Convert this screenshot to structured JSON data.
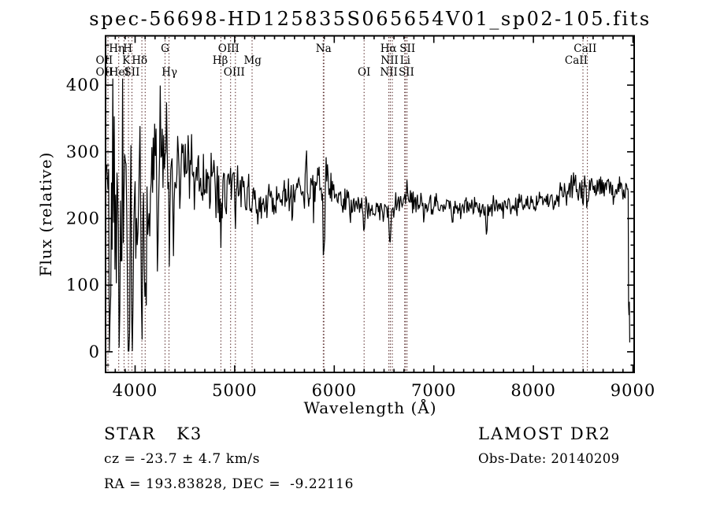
{
  "title": "spec-56698-HD125835S065654V01_sp02-105.fits",
  "annotations": {
    "class_label": "STAR   K3",
    "survey": "LAMOST DR2",
    "cz": "cz = -23.7 ± 4.7 km/s",
    "obs_date": "Obs-Date: 20140209",
    "radec": "RA = 193.83828, DEC =  -9.22116"
  },
  "chart_data": {
    "type": "line",
    "title": "spec-56698-HD125835S065654V01_sp02-105.fits",
    "xlabel": "Wavelength (Å)",
    "ylabel": "Flux (relative)",
    "xlim": [
      3703,
      9012
    ],
    "ylim": [
      -31,
      474
    ],
    "x_ticks": [
      4000,
      5000,
      6000,
      7000,
      8000,
      9000
    ],
    "x_minor_step": 100,
    "y_ticks": [
      0,
      100,
      200,
      300,
      400
    ],
    "y_minor_step": 20,
    "grid": false,
    "legend": "none",
    "line_color": "#000000",
    "marker_line_color": "#5a2d2d",
    "spectral_line_markers": [
      {
        "name": "OII",
        "wavelength": 3727
      },
      {
        "name": "Heta",
        "wavelength": 3835
      },
      {
        "name": "HeI",
        "wavelength": 3889
      },
      {
        "name": "CaII K",
        "wavelength": 3933
      },
      {
        "name": "CaII H",
        "wavelength": 3968
      },
      {
        "name": "SII",
        "wavelength": 4068
      },
      {
        "name": "Hdelta",
        "wavelength": 4101
      },
      {
        "name": "G band",
        "wavelength": 4300
      },
      {
        "name": "Hgamma",
        "wavelength": 4340
      },
      {
        "name": "Hbeta",
        "wavelength": 4861
      },
      {
        "name": "OIII",
        "wavelength": 4959
      },
      {
        "name": "OIII",
        "wavelength": 5007
      },
      {
        "name": "Mg",
        "wavelength": 5175
      },
      {
        "name": "Na",
        "wavelength": 5890
      },
      {
        "name": "Na",
        "wavelength": 5896
      },
      {
        "name": "OI",
        "wavelength": 6300
      },
      {
        "name": "NII",
        "wavelength": 6548
      },
      {
        "name": "Halpha",
        "wavelength": 6563
      },
      {
        "name": "NII",
        "wavelength": 6583
      },
      {
        "name": "Li",
        "wavelength": 6707
      },
      {
        "name": "SII",
        "wavelength": 6716
      },
      {
        "name": "SII",
        "wavelength": 6731
      },
      {
        "name": "CaII",
        "wavelength": 8498
      },
      {
        "name": "CaII",
        "wavelength": 8542
      }
    ],
    "label_rows": [
      {
        "baseline_y": 66,
        "labels": [
          {
            "text": "Hη",
            "wl": 3815
          },
          {
            "text": "H",
            "wl": 3925
          },
          {
            "text": "G",
            "wl": 4300
          },
          {
            "text": "OIII",
            "wl": 4940
          },
          {
            "text": "Na",
            "wl": 5892
          },
          {
            "text": "Hα",
            "wl": 6545
          },
          {
            "text": "SII",
            "wl": 6735
          },
          {
            "text": "CaII",
            "wl": 8520
          }
        ]
      },
      {
        "baseline_y": 81,
        "labels": [
          {
            "text": "OII",
            "wl": 3690
          },
          {
            "text": "K",
            "wl": 3910
          },
          {
            "text": "Hδ",
            "wl": 4045
          },
          {
            "text": "Hβ",
            "wl": 4855
          },
          {
            "text": "Mg",
            "wl": 5180
          },
          {
            "text": "NII",
            "wl": 6555
          },
          {
            "text": "Li",
            "wl": 6712
          },
          {
            "text": "CaII",
            "wl": 8430
          }
        ]
      },
      {
        "baseline_y": 96,
        "labels": [
          {
            "text": "OII",
            "wl": 3690
          },
          {
            "text": "HeI",
            "wl": 3840
          },
          {
            "text": "SII",
            "wl": 3968
          },
          {
            "text": "Hγ",
            "wl": 4345
          },
          {
            "text": "OIII",
            "wl": 4995
          },
          {
            "text": "OI",
            "wl": 6300
          },
          {
            "text": "NII",
            "wl": 6548
          },
          {
            "text": "SII",
            "wl": 6725
          }
        ]
      }
    ],
    "spectrum": {
      "description": "Noisy K3 stellar spectrum, flux vs wavelength",
      "seed": 20140209,
      "step": 7,
      "range": [
        3706,
        8950
      ],
      "start_point": [
        3705,
        40
      ],
      "continuum": [
        [
          3705,
          245
        ],
        [
          3760,
          262
        ],
        [
          3850,
          268
        ],
        [
          3950,
          272
        ],
        [
          4050,
          285
        ],
        [
          4150,
          295
        ],
        [
          4250,
          293
        ],
        [
          4350,
          288
        ],
        [
          4450,
          282
        ],
        [
          4550,
          277
        ],
        [
          4650,
          270
        ],
        [
          4750,
          262
        ],
        [
          4850,
          256
        ],
        [
          4950,
          250
        ],
        [
          5050,
          243
        ],
        [
          5150,
          234
        ],
        [
          5250,
          228
        ],
        [
          5350,
          226
        ],
        [
          5450,
          227
        ],
        [
          5550,
          232
        ],
        [
          5650,
          240
        ],
        [
          5750,
          248
        ],
        [
          5850,
          256
        ],
        [
          5920,
          258
        ],
        [
          5980,
          240
        ],
        [
          6050,
          228
        ],
        [
          6150,
          222
        ],
        [
          6250,
          218
        ],
        [
          6350,
          216
        ],
        [
          6450,
          213
        ],
        [
          6550,
          215
        ],
        [
          6650,
          225
        ],
        [
          6720,
          231
        ],
        [
          6800,
          222
        ],
        [
          6900,
          218
        ],
        [
          7050,
          217
        ],
        [
          7200,
          214
        ],
        [
          7350,
          217
        ],
        [
          7500,
          214
        ],
        [
          7650,
          216
        ],
        [
          7800,
          217
        ],
        [
          7950,
          220
        ],
        [
          8100,
          226
        ],
        [
          8250,
          234
        ],
        [
          8400,
          241
        ],
        [
          8520,
          250
        ],
        [
          8620,
          246
        ],
        [
          8720,
          243
        ],
        [
          8820,
          241
        ],
        [
          8900,
          246
        ],
        [
          8950,
          242
        ]
      ],
      "noise_sigma": [
        [
          3705,
          125
        ],
        [
          3760,
          110
        ],
        [
          3850,
          92
        ],
        [
          3950,
          80
        ],
        [
          4050,
          62
        ],
        [
          4150,
          50
        ],
        [
          4250,
          42
        ],
        [
          4350,
          36
        ],
        [
          4500,
          30
        ],
        [
          4700,
          26
        ],
        [
          4900,
          22
        ],
        [
          5100,
          18
        ],
        [
          5300,
          14
        ],
        [
          5500,
          15
        ],
        [
          5700,
          18
        ],
        [
          5900,
          22
        ],
        [
          6000,
          14
        ],
        [
          6200,
          12
        ],
        [
          6400,
          12
        ],
        [
          6600,
          11
        ],
        [
          6800,
          10
        ],
        [
          7100,
          8
        ],
        [
          7400,
          8
        ],
        [
          7700,
          8
        ],
        [
          8000,
          9
        ],
        [
          8300,
          11
        ],
        [
          8500,
          12
        ],
        [
          8700,
          10
        ],
        [
          8950,
          10
        ]
      ],
      "features": [
        [
          3727,
          25,
          9
        ],
        [
          3750,
          70,
          6
        ],
        [
          3798,
          75,
          8
        ],
        [
          3835,
          55,
          9
        ],
        [
          3889,
          95,
          8
        ],
        [
          3933,
          8,
          11
        ],
        [
          3970,
          35,
          10
        ],
        [
          4026,
          120,
          8
        ],
        [
          4068,
          115,
          7
        ],
        [
          4101,
          75,
          10
        ],
        [
          4144,
          130,
          7
        ],
        [
          4226,
          150,
          7
        ],
        [
          4320,
          355,
          5
        ],
        [
          4344,
          152,
          8
        ],
        [
          4383,
          175,
          7
        ],
        [
          4455,
          200,
          6
        ],
        [
          4861,
          190,
          10
        ],
        [
          4920,
          205,
          6
        ],
        [
          5010,
          196,
          6
        ],
        [
          5175,
          202,
          8
        ],
        [
          5269,
          205,
          6
        ],
        [
          5892,
          158,
          7
        ],
        [
          6161,
          190,
          5
        ],
        [
          6300,
          184,
          7
        ],
        [
          6495,
          195,
          5
        ],
        [
          6563,
          171,
          9
        ],
        [
          7190,
          192,
          5
        ],
        [
          7530,
          176,
          7
        ],
        [
          8200,
          208,
          5
        ],
        [
          8498,
          226,
          5
        ],
        [
          8542,
          224,
          5
        ],
        [
          8800,
          220,
          5
        ]
      ],
      "end_drop": [
        [
          8952,
          240
        ],
        [
          8956,
          70
        ],
        [
          8960,
          55
        ],
        [
          8964,
          75
        ],
        [
          8968,
          14
        ]
      ]
    }
  }
}
